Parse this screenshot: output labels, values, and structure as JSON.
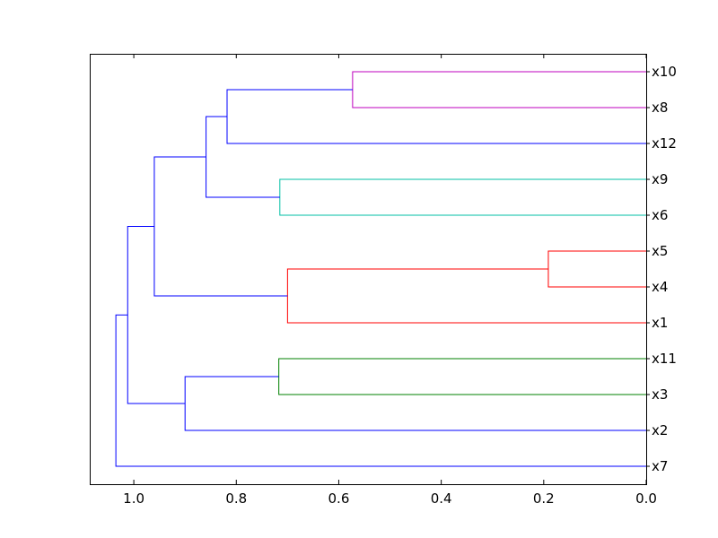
{
  "chart_data": {
    "type": "dendrogram",
    "orientation": "left",
    "title": "",
    "xlabel": "",
    "ylabel": "",
    "xlim": [
      1.086,
      0.0
    ],
    "x_ticks": [
      1.0,
      0.8,
      0.6,
      0.4,
      0.2,
      0.0
    ],
    "x_tick_labels": [
      "1.0",
      "0.8",
      "0.6",
      "0.4",
      "0.2",
      "0.0"
    ],
    "leaves_top_to_bottom": [
      "x10",
      "x8",
      "x12",
      "x9",
      "x6",
      "x5",
      "x4",
      "x1",
      "x11",
      "x3",
      "x2",
      "x7"
    ],
    "links": [
      {
        "a": "x10",
        "b": "x8",
        "height": 0.573,
        "color": "#bf00bf"
      },
      {
        "a": "x9",
        "b": "x6",
        "height": 0.715,
        "color": "#00bfa5"
      },
      {
        "a": "x5",
        "b": "x4",
        "height": 0.191,
        "color": "#ff0000"
      },
      {
        "a": "x5,x4",
        "b": "x1",
        "height": 0.7,
        "color": "#ff0000"
      },
      {
        "a": "x11",
        "b": "x3",
        "height": 0.717,
        "color": "#008000"
      },
      {
        "a": "x10,x8",
        "b": "x12",
        "height": 0.818,
        "color": "#0000ff"
      },
      {
        "a": "x10,x8,x12",
        "b": "x9,x6",
        "height": 0.859,
        "color": "#0000ff"
      },
      {
        "a": "x11,x3",
        "b": "x2",
        "height": 0.9,
        "color": "#0000ff"
      },
      {
        "a": "x10,x8,x12,x9,x6",
        "b": "x5,x4,x1",
        "height": 0.96,
        "color": "#0000ff"
      },
      {
        "a": "x10,x8,x12,x9,x6,x5,x4,x1",
        "b": "x11,x3,x2",
        "height": 1.012,
        "color": "#0000ff"
      },
      {
        "a": "x10,x8,x12,x9,x6,x5,x4,x1,x11,x3,x2",
        "b": "x7",
        "height": 1.035,
        "color": "#0000ff"
      }
    ]
  }
}
